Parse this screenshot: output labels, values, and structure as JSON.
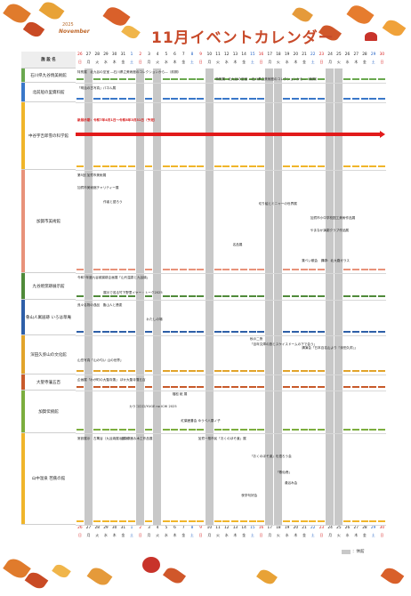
{
  "header": {
    "year": "2025",
    "month_en": "November",
    "title": "11月イベントカレンダー"
  },
  "corner_label": "施 設 名",
  "days": [
    {
      "d": "26",
      "w": "日"
    },
    {
      "d": "27",
      "w": "月"
    },
    {
      "d": "28",
      "w": "火"
    },
    {
      "d": "29",
      "w": "水"
    },
    {
      "d": "30",
      "w": "木"
    },
    {
      "d": "31",
      "w": "金"
    },
    {
      "d": "1",
      "w": "土"
    },
    {
      "d": "2",
      "w": "日"
    },
    {
      "d": "3",
      "w": "月"
    },
    {
      "d": "4",
      "w": "火"
    },
    {
      "d": "5",
      "w": "水"
    },
    {
      "d": "6",
      "w": "木"
    },
    {
      "d": "7",
      "w": "金"
    },
    {
      "d": "8",
      "w": "土"
    },
    {
      "d": "9",
      "w": "日"
    },
    {
      "d": "10",
      "w": "月"
    },
    {
      "d": "11",
      "w": "火"
    },
    {
      "d": "12",
      "w": "水"
    },
    {
      "d": "13",
      "w": "木"
    },
    {
      "d": "14",
      "w": "金"
    },
    {
      "d": "15",
      "w": "土"
    },
    {
      "d": "16",
      "w": "日"
    },
    {
      "d": "17",
      "w": "月"
    },
    {
      "d": "18",
      "w": "火"
    },
    {
      "d": "19",
      "w": "水"
    },
    {
      "d": "20",
      "w": "木"
    },
    {
      "d": "21",
      "w": "金"
    },
    {
      "d": "22",
      "w": "土"
    },
    {
      "d": "23",
      "w": "日"
    },
    {
      "d": "24",
      "w": "月"
    },
    {
      "d": "25",
      "w": "火"
    },
    {
      "d": "26",
      "w": "水"
    },
    {
      "d": "27",
      "w": "木"
    },
    {
      "d": "28",
      "w": "金"
    },
    {
      "d": "29",
      "w": "土"
    },
    {
      "d": "30",
      "w": "日"
    }
  ],
  "colors": {
    "sunday": "#d81e1e",
    "saturday": "#1f5fc4",
    "closed": "#c8c8c8",
    "arrow": "#e21b1b"
  },
  "facilities": [
    {
      "name": "石川県九谷焼美術館",
      "color": "#6aa84f"
    },
    {
      "name": "北前船の里資料館",
      "color": "#3a78c9"
    },
    {
      "name": "中谷宇吉郎雪の科学館",
      "color": "#f0b52a"
    },
    {
      "name": "加賀市美術館",
      "color": "#e8927a"
    },
    {
      "name": "九谷焼窯跡展示館",
      "color": "#4f8a3a"
    },
    {
      "name": "魯山人寓居跡 いろは草庵",
      "color": "#2e5fa8"
    },
    {
      "name": "深田久弥山の文化館",
      "color": "#e2a42a"
    },
    {
      "name": "大聖寺藩五百",
      "color": "#c85a2a"
    },
    {
      "name": "加賀伝統館",
      "color": "#7cae3e"
    },
    {
      "name": "山中温泉 芭蕉の館",
      "color": "#f0b52a"
    }
  ],
  "events": [
    {
      "text": "特別展　北九谷の至宝 ―石川県立美術館のコレクションから―（前期）"
    },
    {
      "text": "特別展　北九谷の至宝 ―石川県立美術館のコレクションから―（後期）"
    },
    {
      "text": "「明治の古写真」パネル展"
    },
    {
      "text": "新展示期：令和7年4月1日〜令和8年3月31日（予定）"
    },
    {
      "text": "第5回 加賀市美術展"
    },
    {
      "text": "加賀市美術館チャリティー展"
    },
    {
      "text": "作者と語ろう"
    },
    {
      "text": "切り絵とミニャーの世界展"
    },
    {
      "text": "加賀市小中学校図工美術作品展"
    },
    {
      "text": "やまなか演劇クラブ作品展"
    },
    {
      "text": "名品展"
    },
    {
      "text": "集べい散会　講師：北大路ガラス"
    },
    {
      "text": "令和7年度九谷焼窯跡企画展「山代温泉と九谷焼」"
    },
    {
      "text": "展示で巡る竹下野里イヤー・トーク2025"
    },
    {
      "text": "呉々名物の逸品　魯山人と蕎麦"
    },
    {
      "text": "わたしの場"
    },
    {
      "text": "秋の二夜"
    },
    {
      "text": "「百年文庫の旅とスケイスドームの下で会う」"
    },
    {
      "text": "講演会「日本百名山より『深田久弥』」"
    },
    {
      "text": "山岳写真「山の匂い 山の世界」"
    },
    {
      "text": "企画展「わが町の大聖寺藩」 ほか大聖寺藩五百"
    },
    {
      "text": "福松 紙 展"
    },
    {
      "text": "カラコロロ/YUGE no ICHI 2025"
    },
    {
      "text": "紅葉囲碁会 ゆうべ八雲ノ子"
    },
    {
      "text": "常設展示　古萬谷（九谷焼展示展示）"
    },
    {
      "text": "山中漆器＆木工作品展"
    },
    {
      "text": "加賀一般市民「おくのほそ道」展"
    },
    {
      "text": "「おくのほそ道」を語ろう会"
    },
    {
      "text": "「歌仙巻」"
    },
    {
      "text": "湯浴み会"
    },
    {
      "text": "夜学句好会"
    }
  ],
  "legend": {
    "label": "：休館"
  }
}
